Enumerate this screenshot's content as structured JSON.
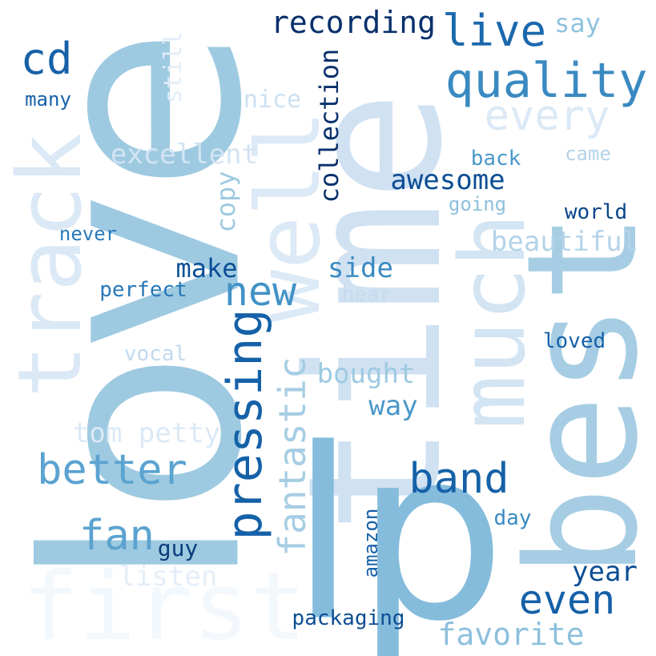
{
  "words": [
    {
      "text": "first",
      "color": "#f3f8fd"
    },
    {
      "text": "love",
      "color": "#9ecae1"
    },
    {
      "text": "time",
      "color": "#d0e1f2"
    },
    {
      "text": "best",
      "color": "#a6cde3"
    },
    {
      "text": "lp",
      "color": "#85bcdc"
    },
    {
      "text": "track",
      "color": "#dbe9f6"
    },
    {
      "text": "well",
      "color": "#dce9f6"
    },
    {
      "text": "much",
      "color": "#d3e4f3"
    },
    {
      "text": "quality",
      "color": "#3a8ac2"
    },
    {
      "text": "live",
      "color": "#1b68ad"
    },
    {
      "text": "recording",
      "color": "#08306b"
    },
    {
      "text": "cd",
      "color": "#1861a8"
    },
    {
      "text": "say",
      "color": "#90c2de"
    },
    {
      "text": "every",
      "color": "#dbe9f6"
    },
    {
      "text": "many",
      "color": "#1660a8"
    },
    {
      "text": "still",
      "color": "#e2edf8"
    },
    {
      "text": "nice",
      "color": "#cde0f1"
    },
    {
      "text": "excellent",
      "color": "#d3e4f3"
    },
    {
      "text": "collection",
      "color": "#08306b"
    },
    {
      "text": "back",
      "color": "#4a98c9"
    },
    {
      "text": "came",
      "color": "#b4d3e9"
    },
    {
      "text": "awesome",
      "color": "#0b4d93"
    },
    {
      "text": "going",
      "color": "#8dc0dd"
    },
    {
      "text": "world",
      "color": "#08468b"
    },
    {
      "text": "copy",
      "color": "#9ecae1"
    },
    {
      "text": "never",
      "color": "#2a7ab9"
    },
    {
      "text": "beautiful",
      "color": "#b4d3e9"
    },
    {
      "text": "make",
      "color": "#0b4f96"
    },
    {
      "text": "new",
      "color": "#4292c6"
    },
    {
      "text": "side",
      "color": "#3a8ac2"
    },
    {
      "text": "perfect",
      "color": "#2878b8"
    },
    {
      "text": "hear",
      "color": "#c6dbef"
    },
    {
      "text": "pressing",
      "color": "#1561a8"
    },
    {
      "text": "fantastic",
      "color": "#a6cde3"
    },
    {
      "text": "loved",
      "color": "#1561a8"
    },
    {
      "text": "vocal",
      "color": "#c2d9ee"
    },
    {
      "text": "bought",
      "color": "#9ecae1"
    },
    {
      "text": "way",
      "color": "#4a98c9"
    },
    {
      "text": "tom petty",
      "color": "#dbe9f6"
    },
    {
      "text": "better",
      "color": "#5ba3d0"
    },
    {
      "text": "band",
      "color": "#1561a8"
    },
    {
      "text": "amazon",
      "color": "#1561a8"
    },
    {
      "text": "day",
      "color": "#3a8ac2"
    },
    {
      "text": "fan",
      "color": "#5ba3d0"
    },
    {
      "text": "guy",
      "color": "#0b3d7a"
    },
    {
      "text": "listen",
      "color": "#e3eef9"
    },
    {
      "text": "year",
      "color": "#0b4d93"
    },
    {
      "text": "even",
      "color": "#1561a8"
    },
    {
      "text": "packaging",
      "color": "#0b4d93"
    },
    {
      "text": "favorite",
      "color": "#8dc0dd"
    }
  ]
}
